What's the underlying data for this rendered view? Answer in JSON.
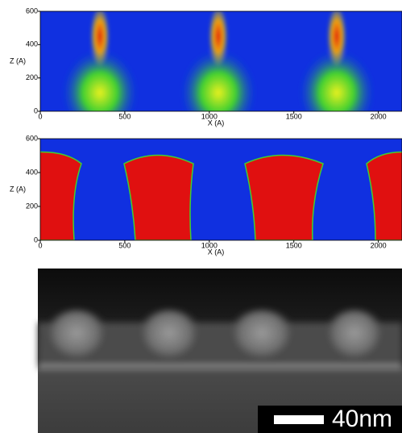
{
  "chart_data": [
    {
      "type": "heatmap",
      "xlabel": "X (A)",
      "ylabel": "Z (A)",
      "xlim": [
        0,
        2140
      ],
      "ylim": [
        0,
        600
      ],
      "xticks": [
        0,
        500,
        1000,
        1500,
        2000
      ],
      "yticks": [
        0,
        200,
        400,
        600
      ]
    },
    {
      "type": "heatmap",
      "xlabel": "X (A)",
      "ylabel": "Z (A)",
      "xlim": [
        0,
        2140
      ],
      "ylim": [
        0,
        600
      ],
      "xticks": [
        0,
        500,
        1000,
        1500,
        2000
      ],
      "yticks": [
        0,
        200,
        400,
        600
      ]
    }
  ],
  "image": {
    "scale_bar": "40nm"
  }
}
